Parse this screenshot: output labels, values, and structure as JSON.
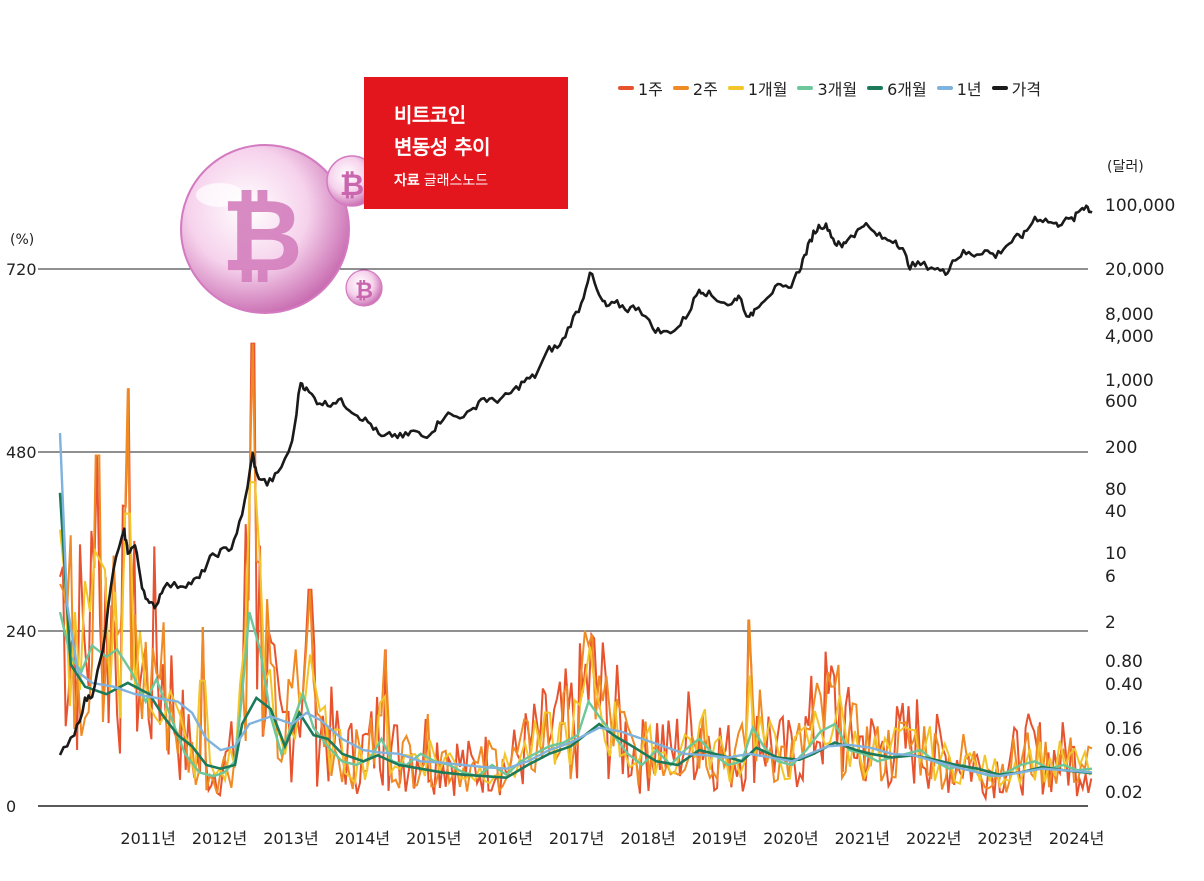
{
  "title": {
    "line1": "비트코인",
    "line2": "변동성 추이",
    "source_label": "자료",
    "source_name": "글래스노드"
  },
  "colors": {
    "1w": "#e8532f",
    "2w": "#f08a24",
    "1m": "#f2c62a",
    "3m": "#6cc79a",
    "6m": "#1b7a5a",
    "1y": "#7fb2dc",
    "price": "#1a1a1a",
    "title_bg": "#e3161e",
    "grid": "#222222"
  },
  "chart_data": {
    "type": "line",
    "x_ticks": [
      "2011년",
      "2012년",
      "2013년",
      "2014년",
      "2015년",
      "2016년",
      "2017년",
      "2018년",
      "2019년",
      "2020년",
      "2021년",
      "2022년",
      "2023년",
      "2024년"
    ],
    "left_axis": {
      "unit": "(%)",
      "ticks": [
        "720",
        "480",
        "240",
        "0"
      ],
      "ylim": [
        0,
        720
      ]
    },
    "right_axis": {
      "unit": "(달러)",
      "scale": "log",
      "ticks": [
        "100,000",
        "20,000",
        "8,000",
        "4,000",
        "1,000",
        "600",
        "200",
        "80",
        "40",
        "10",
        "6",
        "2",
        "0.80",
        "0.40",
        "0.16",
        "0.06",
        "0.02"
      ]
    },
    "legend": [
      {
        "key": "1w",
        "label": "1주"
      },
      {
        "key": "2w",
        "label": "2주"
      },
      {
        "key": "1m",
        "label": "1개월"
      },
      {
        "key": "3m",
        "label": "3개월"
      },
      {
        "key": "6m",
        "label": "6개월"
      },
      {
        "key": "1y",
        "label": "1년"
      },
      {
        "key": "price",
        "label": "가격"
      }
    ],
    "price_usd": [
      [
        2010.55,
        0.06
      ],
      [
        2010.75,
        0.1
      ],
      [
        2010.9,
        0.25
      ],
      [
        2011.0,
        0.3
      ],
      [
        2011.15,
        0.9
      ],
      [
        2011.3,
        8
      ],
      [
        2011.45,
        20
      ],
      [
        2011.5,
        12
      ],
      [
        2011.6,
        14
      ],
      [
        2011.7,
        5
      ],
      [
        2011.8,
        3
      ],
      [
        2011.9,
        3
      ],
      [
        2012.0,
        5
      ],
      [
        2012.2,
        5
      ],
      [
        2012.35,
        5.2
      ],
      [
        2012.5,
        6
      ],
      [
        2012.65,
        10
      ],
      [
        2012.8,
        12
      ],
      [
        2012.95,
        13.5
      ],
      [
        2013.1,
        30
      ],
      [
        2013.25,
        150
      ],
      [
        2013.3,
        90
      ],
      [
        2013.45,
        70
      ],
      [
        2013.6,
        90
      ],
      [
        2013.8,
        200
      ],
      [
        2013.92,
        1000
      ],
      [
        2014.0,
        800
      ],
      [
        2014.15,
        600
      ],
      [
        2014.3,
        550
      ],
      [
        2014.45,
        620
      ],
      [
        2014.6,
        500
      ],
      [
        2014.75,
        400
      ],
      [
        2014.9,
        330
      ],
      [
        2015.05,
        230
      ],
      [
        2015.2,
        250
      ],
      [
        2015.35,
        235
      ],
      [
        2015.5,
        275
      ],
      [
        2015.65,
        235
      ],
      [
        2015.8,
        300
      ],
      [
        2015.95,
        430
      ],
      [
        2016.1,
        400
      ],
      [
        2016.3,
        440
      ],
      [
        2016.45,
        650
      ],
      [
        2016.6,
        600
      ],
      [
        2016.75,
        640
      ],
      [
        2016.9,
        780
      ],
      [
        2017.05,
        1000
      ],
      [
        2017.2,
        1150
      ],
      [
        2017.4,
        2300
      ],
      [
        2017.55,
        2500
      ],
      [
        2017.7,
        4500
      ],
      [
        2017.85,
        7500
      ],
      [
        2017.97,
        17500
      ],
      [
        2018.1,
        9000
      ],
      [
        2018.2,
        7000
      ],
      [
        2018.35,
        7500
      ],
      [
        2018.5,
        6500
      ],
      [
        2018.65,
        7000
      ],
      [
        2018.85,
        4000
      ],
      [
        2019.0,
        3500
      ],
      [
        2019.2,
        4000
      ],
      [
        2019.35,
        6000
      ],
      [
        2019.5,
        11000
      ],
      [
        2019.6,
        10000
      ],
      [
        2019.75,
        8500
      ],
      [
        2019.95,
        7200
      ],
      [
        2020.05,
        9500
      ],
      [
        2020.2,
        5000
      ],
      [
        2020.3,
        7000
      ],
      [
        2020.45,
        9200
      ],
      [
        2020.6,
        11500
      ],
      [
        2020.75,
        11000
      ],
      [
        2020.9,
        18000
      ],
      [
        2021.0,
        29000
      ],
      [
        2021.1,
        47000
      ],
      [
        2021.2,
        58000
      ],
      [
        2021.3,
        55000
      ],
      [
        2021.4,
        37000
      ],
      [
        2021.5,
        33000
      ],
      [
        2021.6,
        43000
      ],
      [
        2021.7,
        47000
      ],
      [
        2021.8,
        61000
      ],
      [
        2021.95,
        47000
      ],
      [
        2022.1,
        40000
      ],
      [
        2022.25,
        39000
      ],
      [
        2022.35,
        30000
      ],
      [
        2022.45,
        20000
      ],
      [
        2022.6,
        21000
      ],
      [
        2022.8,
        19000
      ],
      [
        2022.95,
        16500
      ],
      [
        2023.05,
        23000
      ],
      [
        2023.2,
        28000
      ],
      [
        2023.35,
        27000
      ],
      [
        2023.5,
        30000
      ],
      [
        2023.65,
        26000
      ],
      [
        2023.8,
        34000
      ],
      [
        2023.95,
        42000
      ],
      [
        2024.05,
        45000
      ],
      [
        2024.2,
        70000
      ],
      [
        2024.35,
        66000
      ],
      [
        2024.5,
        58000
      ],
      [
        2024.6,
        64000
      ],
      [
        2024.75,
        68000
      ],
      [
        2024.85,
        90000
      ],
      [
        2024.92,
        95000
      ],
      [
        2025.0,
        80000
      ]
    ],
    "vol_1y": [
      [
        2010.55,
        500
      ],
      [
        2010.65,
        270
      ],
      [
        2010.8,
        180
      ],
      [
        2011.0,
        165
      ],
      [
        2011.3,
        160
      ],
      [
        2011.6,
        150
      ],
      [
        2011.9,
        145
      ],
      [
        2012.2,
        140
      ],
      [
        2012.4,
        125
      ],
      [
        2012.6,
        90
      ],
      [
        2012.8,
        75
      ],
      [
        2013.0,
        80
      ],
      [
        2013.2,
        110
      ],
      [
        2013.5,
        120
      ],
      [
        2013.8,
        110
      ],
      [
        2014.0,
        125
      ],
      [
        2014.2,
        115
      ],
      [
        2014.5,
        90
      ],
      [
        2014.8,
        75
      ],
      [
        2015.0,
        72
      ],
      [
        2015.3,
        70
      ],
      [
        2015.6,
        60
      ],
      [
        2015.9,
        58
      ],
      [
        2016.2,
        55
      ],
      [
        2016.5,
        52
      ],
      [
        2016.8,
        50
      ],
      [
        2017.1,
        60
      ],
      [
        2017.4,
        75
      ],
      [
        2017.7,
        85
      ],
      [
        2017.9,
        95
      ],
      [
        2018.1,
        105
      ],
      [
        2018.4,
        100
      ],
      [
        2018.7,
        90
      ],
      [
        2019.0,
        80
      ],
      [
        2019.3,
        70
      ],
      [
        2019.6,
        68
      ],
      [
        2019.9,
        65
      ],
      [
        2020.2,
        70
      ],
      [
        2020.5,
        65
      ],
      [
        2020.8,
        60
      ],
      [
        2021.0,
        68
      ],
      [
        2021.3,
        80
      ],
      [
        2021.6,
        82
      ],
      [
        2021.9,
        78
      ],
      [
        2022.2,
        70
      ],
      [
        2022.5,
        68
      ],
      [
        2022.8,
        60
      ],
      [
        2023.1,
        52
      ],
      [
        2023.4,
        45
      ],
      [
        2023.7,
        40
      ],
      [
        2024.0,
        45
      ],
      [
        2024.3,
        50
      ],
      [
        2024.6,
        48
      ],
      [
        2024.9,
        46
      ],
      [
        2025.0,
        45
      ]
    ],
    "vol_6m": [
      [
        2010.55,
        420
      ],
      [
        2010.7,
        190
      ],
      [
        2010.9,
        160
      ],
      [
        2011.2,
        150
      ],
      [
        2011.5,
        165
      ],
      [
        2011.8,
        150
      ],
      [
        2012.0,
        120
      ],
      [
        2012.2,
        95
      ],
      [
        2012.4,
        80
      ],
      [
        2012.6,
        55
      ],
      [
        2012.8,
        50
      ],
      [
        2013.0,
        55
      ],
      [
        2013.1,
        110
      ],
      [
        2013.3,
        145
      ],
      [
        2013.5,
        130
      ],
      [
        2013.7,
        80
      ],
      [
        2013.9,
        125
      ],
      [
        2014.1,
        95
      ],
      [
        2014.3,
        90
      ],
      [
        2014.5,
        70
      ],
      [
        2014.8,
        60
      ],
      [
        2015.0,
        68
      ],
      [
        2015.3,
        55
      ],
      [
        2015.6,
        50
      ],
      [
        2015.9,
        45
      ],
      [
        2016.2,
        42
      ],
      [
        2016.5,
        40
      ],
      [
        2016.8,
        38
      ],
      [
        2017.1,
        55
      ],
      [
        2017.4,
        70
      ],
      [
        2017.7,
        80
      ],
      [
        2017.9,
        95
      ],
      [
        2018.1,
        110
      ],
      [
        2018.3,
        95
      ],
      [
        2018.6,
        78
      ],
      [
        2018.9,
        60
      ],
      [
        2019.2,
        55
      ],
      [
        2019.5,
        75
      ],
      [
        2019.8,
        68
      ],
      [
        2020.1,
        60
      ],
      [
        2020.3,
        78
      ],
      [
        2020.6,
        65
      ],
      [
        2020.9,
        62
      ],
      [
        2021.1,
        70
      ],
      [
        2021.4,
        85
      ],
      [
        2021.7,
        75
      ],
      [
        2021.9,
        70
      ],
      [
        2022.2,
        65
      ],
      [
        2022.5,
        68
      ],
      [
        2022.8,
        62
      ],
      [
        2023.1,
        55
      ],
      [
        2023.4,
        50
      ],
      [
        2023.7,
        42
      ],
      [
        2024.0,
        45
      ],
      [
        2024.3,
        52
      ],
      [
        2024.6,
        48
      ],
      [
        2024.9,
        45
      ],
      [
        2025.0,
        44
      ]
    ],
    "vol_3m": [
      [
        2010.55,
        260
      ],
      [
        2010.7,
        200
      ],
      [
        2010.85,
        180
      ],
      [
        2011.0,
        215
      ],
      [
        2011.2,
        200
      ],
      [
        2011.35,
        210
      ],
      [
        2011.55,
        180
      ],
      [
        2011.75,
        140
      ],
      [
        2011.9,
        170
      ],
      [
        2012.1,
        120
      ],
      [
        2012.3,
        70
      ],
      [
        2012.5,
        45
      ],
      [
        2012.7,
        40
      ],
      [
        2012.85,
        45
      ],
      [
        2013.0,
        60
      ],
      [
        2013.1,
        150
      ],
      [
        2013.2,
        260
      ],
      [
        2013.35,
        210
      ],
      [
        2013.5,
        120
      ],
      [
        2013.65,
        70
      ],
      [
        2013.8,
        110
      ],
      [
        2013.95,
        150
      ],
      [
        2014.1,
        105
      ],
      [
        2014.3,
        80
      ],
      [
        2014.5,
        60
      ],
      [
        2014.7,
        55
      ],
      [
        2014.9,
        65
      ],
      [
        2015.05,
        90
      ],
      [
        2015.2,
        60
      ],
      [
        2015.4,
        55
      ],
      [
        2015.6,
        70
      ],
      [
        2015.8,
        60
      ],
      [
        2016.0,
        55
      ],
      [
        2016.2,
        45
      ],
      [
        2016.4,
        40
      ],
      [
        2016.6,
        55
      ],
      [
        2016.8,
        42
      ],
      [
        2017.0,
        60
      ],
      [
        2017.2,
        70
      ],
      [
        2017.4,
        80
      ],
      [
        2017.6,
        85
      ],
      [
        2017.8,
        95
      ],
      [
        2017.95,
        140
      ],
      [
        2018.1,
        120
      ],
      [
        2018.3,
        95
      ],
      [
        2018.5,
        70
      ],
      [
        2018.7,
        55
      ],
      [
        2018.9,
        75
      ],
      [
        2019.1,
        55
      ],
      [
        2019.3,
        75
      ],
      [
        2019.5,
        90
      ],
      [
        2019.7,
        70
      ],
      [
        2019.9,
        55
      ],
      [
        2020.1,
        60
      ],
      [
        2020.25,
        105
      ],
      [
        2020.4,
        80
      ],
      [
        2020.6,
        60
      ],
      [
        2020.8,
        55
      ],
      [
        2021.0,
        75
      ],
      [
        2021.2,
        100
      ],
      [
        2021.4,
        110
      ],
      [
        2021.6,
        75
      ],
      [
        2021.8,
        70
      ],
      [
        2022.0,
        60
      ],
      [
        2022.2,
        65
      ],
      [
        2022.4,
        70
      ],
      [
        2022.6,
        75
      ],
      [
        2022.8,
        60
      ],
      [
        2023.0,
        50
      ],
      [
        2023.2,
        55
      ],
      [
        2023.4,
        45
      ],
      [
        2023.6,
        40
      ],
      [
        2023.8,
        45
      ],
      [
        2024.0,
        55
      ],
      [
        2024.2,
        60
      ],
      [
        2024.4,
        50
      ],
      [
        2024.6,
        55
      ],
      [
        2024.8,
        48
      ],
      [
        2025.0,
        50
      ]
    ]
  }
}
